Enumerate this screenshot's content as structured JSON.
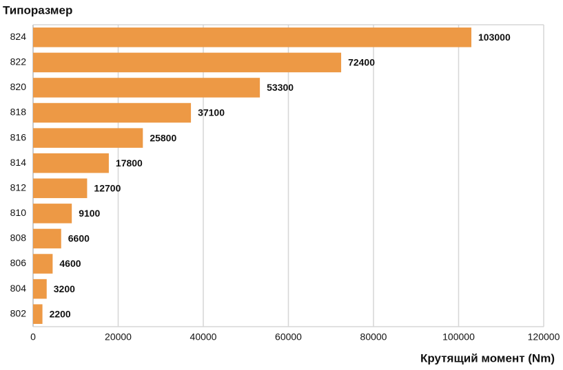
{
  "chart_data": {
    "type": "bar",
    "orientation": "horizontal",
    "title": "Типоразмер",
    "x_label": "Крутящий момент (Nm)",
    "categories": [
      "824",
      "822",
      "820",
      "818",
      "816",
      "814",
      "812",
      "810",
      "808",
      "806",
      "804",
      "802"
    ],
    "values": [
      103000,
      72400,
      53300,
      37100,
      25800,
      17800,
      12700,
      9100,
      6600,
      4600,
      3200,
      2200
    ],
    "color": "#ed9945",
    "xlim": [
      0,
      120000
    ],
    "xticks": [
      0,
      20000,
      40000,
      60000,
      80000,
      100000,
      120000
    ],
    "grid": true
  }
}
